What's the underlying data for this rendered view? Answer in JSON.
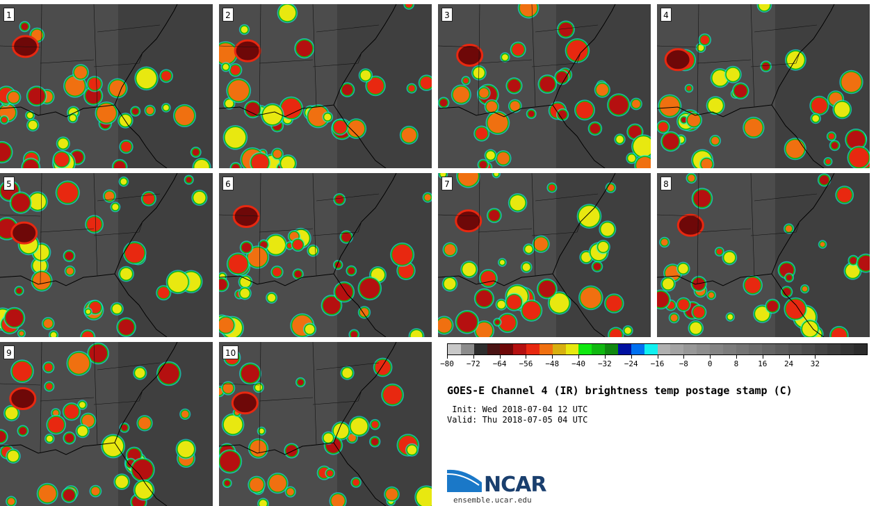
{
  "panels": [
    "1",
    "2",
    "3",
    "4",
    "5",
    "6",
    "7",
    "8",
    "9",
    "10"
  ],
  "colorbar": {
    "colors": [
      "#c8c8c8",
      "#8c8c8c",
      "#2e2e2e",
      "#4a1414",
      "#6e0808",
      "#b51010",
      "#e82810",
      "#f07010",
      "#d8b010",
      "#e8e810",
      "#10e810",
      "#10b810",
      "#108810",
      "#0010a0",
      "#0070f0",
      "#10f0f0",
      "#b0b0b0",
      "#a4a4a4",
      "#989898",
      "#8e8e8e",
      "#848484",
      "#7c7c7c",
      "#747474",
      "#6c6c6c",
      "#646464",
      "#5c5c5c",
      "#545454",
      "#4c4c4c",
      "#444444",
      "#3c3c3c",
      "#343434",
      "#2c2c2c"
    ],
    "tick_labels": [
      "−80",
      "−72",
      "−64",
      "−56",
      "−48",
      "−40",
      "−32",
      "−24",
      "−16",
      "−8",
      "0",
      "8",
      "16",
      "24",
      "32"
    ]
  },
  "title": "GOES-E Channel 4 (IR) brightness temp postage stamp (C)",
  "init": " Init: Wed 2018-07-04 12 UTC",
  "valid": "Valid: Thu 2018-07-05 04 UTC",
  "logo": {
    "text": "NCAR",
    "site": "ensemble.ucar.edu"
  }
}
